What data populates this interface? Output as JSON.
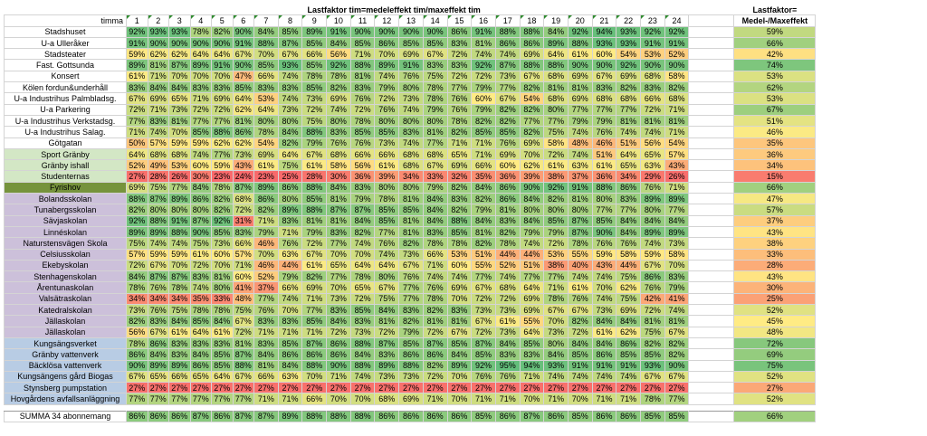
{
  "header": {
    "title": "Lastfaktor tim=medeleffekt tim/maxeffekt tim",
    "lf_title": "Lastfaktor=",
    "lf_subtitle": "Medel-/Maxeffekt",
    "row_label": "timma",
    "hours": [
      "1",
      "2",
      "3",
      "4",
      "5",
      "6",
      "7",
      "8",
      "9",
      "10",
      "11",
      "12",
      "13",
      "14",
      "15",
      "16",
      "17",
      "18",
      "19",
      "20",
      "21",
      "22",
      "23",
      "24"
    ]
  },
  "group_colors": {
    "none": "#ffffff",
    "green_light": "#d3e7c5",
    "green_dark": "#76933c",
    "purple": "#ccc0da",
    "blue": "#b8cce4"
  },
  "rows": [
    {
      "name": "Stadshuset",
      "group": "none",
      "values": [
        92,
        93,
        93,
        78,
        82,
        90,
        84,
        85,
        89,
        91,
        90,
        90,
        90,
        90,
        86,
        91,
        88,
        88,
        84,
        92,
        94,
        93,
        92,
        92
      ],
      "lf": "59%"
    },
    {
      "name": "U-a Ulleråker",
      "group": "none",
      "values": [
        91,
        90,
        90,
        90,
        90,
        91,
        88,
        87,
        85,
        84,
        85,
        86,
        85,
        85,
        83,
        81,
        86,
        86,
        89,
        88,
        93,
        93,
        91,
        91
      ],
      "lf": "66%"
    },
    {
      "name": "Stadsteater",
      "group": "none",
      "values": [
        59,
        62,
        62,
        64,
        64,
        67,
        70,
        67,
        66,
        56,
        71,
        70,
        69,
        67,
        72,
        74,
        74,
        69,
        64,
        61,
        60,
        54,
        53,
        52
      ],
      "lf": "42%"
    },
    {
      "name": "Fast. Gottsunda",
      "group": "none",
      "values": [
        89,
        81,
        87,
        89,
        91,
        90,
        85,
        93,
        85,
        92,
        88,
        89,
        91,
        83,
        83,
        92,
        87,
        88,
        88,
        90,
        90,
        92,
        90,
        90
      ],
      "lf": "74%"
    },
    {
      "name": "Konsert",
      "group": "none",
      "values": [
        61,
        71,
        70,
        70,
        70,
        47,
        66,
        74,
        78,
        78,
        81,
        74,
        76,
        75,
        72,
        72,
        73,
        67,
        68,
        69,
        67,
        69,
        68,
        58
      ],
      "lf": "53%"
    },
    {
      "name": "Kölen fordun&underhåll",
      "group": "none",
      "values": [
        83,
        84,
        84,
        83,
        83,
        85,
        83,
        83,
        85,
        82,
        83,
        79,
        80,
        78,
        77,
        79,
        77,
        82,
        81,
        81,
        83,
        82,
        83,
        82
      ],
      "lf": "62%"
    },
    {
      "name": "U-a Industrihus Palmbladsg.",
      "group": "none",
      "values": [
        67,
        69,
        65,
        71,
        69,
        64,
        53,
        74,
        73,
        69,
        76,
        72,
        73,
        78,
        76,
        60,
        67,
        54,
        68,
        69,
        68,
        68,
        66,
        68
      ],
      "lf": "53%"
    },
    {
      "name": "U-a Parkering",
      "group": "none",
      "values": [
        72,
        71,
        73,
        72,
        72,
        62,
        64,
        73,
        72,
        74,
        72,
        76,
        74,
        79,
        76,
        79,
        82,
        82,
        80,
        77,
        77,
        77,
        72,
        71
      ],
      "lf": "67%"
    },
    {
      "name": "U-a Industrihus Verkstadsg.",
      "group": "none",
      "values": [
        77,
        83,
        81,
        77,
        77,
        81,
        80,
        80,
        75,
        80,
        78,
        80,
        80,
        80,
        78,
        82,
        82,
        77,
        77,
        79,
        79,
        81,
        81,
        81
      ],
      "lf": "51%"
    },
    {
      "name": "U-a Industrihus Salag.",
      "group": "none",
      "values": [
        71,
        74,
        70,
        85,
        88,
        86,
        78,
        84,
        88,
        83,
        85,
        85,
        83,
        81,
        82,
        85,
        85,
        82,
        75,
        74,
        76,
        74,
        74,
        71
      ],
      "lf": "46%"
    },
    {
      "name": "Götgatan",
      "group": "none",
      "values": [
        50,
        57,
        59,
        59,
        62,
        62,
        54,
        82,
        79,
        76,
        76,
        73,
        74,
        77,
        71,
        71,
        76,
        69,
        58,
        48,
        46,
        51,
        56,
        54
      ],
      "lf": "35%"
    },
    {
      "name": "Sport Gränby",
      "group": "green_light",
      "values": [
        64,
        68,
        68,
        74,
        77,
        73,
        69,
        64,
        67,
        68,
        66,
        66,
        68,
        68,
        65,
        71,
        69,
        70,
        72,
        74,
        51,
        64,
        65,
        57
      ],
      "lf": "36%"
    },
    {
      "name": "Gränby ishall",
      "group": "green_light",
      "values": [
        52,
        49,
        53,
        60,
        59,
        43,
        61,
        75,
        61,
        58,
        56,
        61,
        68,
        67,
        69,
        66,
        60,
        62,
        61,
        63,
        61,
        65,
        63,
        43
      ],
      "lf": "34%"
    },
    {
      "name": "Studenternas",
      "group": "green_light",
      "values": [
        27,
        28,
        26,
        30,
        23,
        24,
        23,
        25,
        28,
        30,
        36,
        39,
        34,
        33,
        32,
        35,
        36,
        39,
        38,
        37,
        36,
        34,
        29,
        26
      ],
      "lf": "15%"
    },
    {
      "name": "Fyrishov",
      "group": "green_dark",
      "values": [
        69,
        75,
        77,
        84,
        78,
        87,
        89,
        86,
        88,
        84,
        83,
        80,
        80,
        79,
        82,
        84,
        86,
        90,
        92,
        91,
        88,
        86,
        76,
        71
      ],
      "lf": "66%"
    },
    {
      "name": "Bolandsskolan",
      "group": "purple",
      "values": [
        88,
        87,
        89,
        86,
        82,
        68,
        86,
        80,
        85,
        81,
        79,
        78,
        81,
        84,
        83,
        82,
        86,
        84,
        82,
        81,
        80,
        83,
        89,
        89
      ],
      "lf": "47%"
    },
    {
      "name": "Tunabergsskolan",
      "group": "purple",
      "values": [
        82,
        80,
        80,
        80,
        82,
        72,
        82,
        89,
        88,
        87,
        87,
        85,
        85,
        84,
        82,
        79,
        81,
        80,
        80,
        80,
        77,
        77,
        80,
        77
      ],
      "lf": "57%"
    },
    {
      "name": "Sävjaskolan",
      "group": "purple",
      "values": [
        92,
        88,
        91,
        87,
        92,
        31,
        71,
        83,
        81,
        81,
        84,
        85,
        81,
        84,
        88,
        84,
        83,
        84,
        85,
        87,
        85,
        84,
        84,
        84
      ],
      "lf": "37%"
    },
    {
      "name": "Linnéskolan",
      "group": "purple",
      "values": [
        89,
        89,
        88,
        90,
        85,
        83,
        79,
        71,
        79,
        83,
        82,
        77,
        81,
        83,
        85,
        81,
        82,
        79,
        79,
        87,
        90,
        84,
        89,
        89
      ],
      "lf": "43%"
    },
    {
      "name": "Naturstensvägen Skola",
      "group": "purple",
      "values": [
        75,
        74,
        74,
        75,
        73,
        66,
        46,
        76,
        72,
        77,
        74,
        76,
        82,
        78,
        78,
        82,
        78,
        74,
        72,
        78,
        76,
        76,
        74,
        73
      ],
      "lf": "38%"
    },
    {
      "name": "Celsiusskolan",
      "group": "purple",
      "values": [
        57,
        59,
        59,
        61,
        60,
        57,
        70,
        63,
        67,
        70,
        70,
        74,
        73,
        66,
        53,
        51,
        44,
        44,
        53,
        55,
        59,
        58,
        59,
        58
      ],
      "lf": "33%"
    },
    {
      "name": "Ekebyskolan",
      "group": "purple",
      "values": [
        72,
        67,
        70,
        72,
        70,
        71,
        46,
        44,
        61,
        65,
        64,
        64,
        67,
        71,
        60,
        55,
        52,
        51,
        38,
        40,
        43,
        44,
        67,
        70
      ],
      "lf": "28%"
    },
    {
      "name": "Stenhagenskolan",
      "group": "purple",
      "values": [
        84,
        87,
        87,
        83,
        81,
        60,
        52,
        79,
        82,
        77,
        78,
        80,
        76,
        74,
        74,
        77,
        74,
        77,
        77,
        74,
        74,
        75,
        86,
        83
      ],
      "lf": "43%"
    },
    {
      "name": "Årentunaskolan",
      "group": "purple",
      "values": [
        78,
        76,
        78,
        74,
        80,
        41,
        37,
        66,
        69,
        70,
        65,
        67,
        77,
        76,
        69,
        67,
        68,
        64,
        71,
        61,
        70,
        62,
        76,
        79
      ],
      "lf": "30%"
    },
    {
      "name": "Valsätraskolan",
      "group": "purple",
      "values": [
        34,
        34,
        34,
        35,
        33,
        48,
        77,
        74,
        71,
        73,
        72,
        75,
        77,
        78,
        70,
        72,
        72,
        69,
        78,
        76,
        74,
        75,
        42,
        41
      ],
      "lf": "25%"
    },
    {
      "name": "Katedralskolan",
      "group": "purple",
      "values": [
        73,
        76,
        75,
        78,
        78,
        75,
        76,
        70,
        77,
        83,
        85,
        84,
        83,
        82,
        83,
        73,
        73,
        69,
        67,
        67,
        73,
        69,
        72,
        74
      ],
      "lf": "52%"
    },
    {
      "name": "Jällaskolan",
      "group": "purple",
      "values": [
        82,
        83,
        84,
        85,
        84,
        67,
        83,
        83,
        85,
        84,
        83,
        81,
        82,
        81,
        81,
        67,
        61,
        55,
        70,
        82,
        84,
        84,
        81,
        81
      ],
      "lf": "45%"
    },
    {
      "name": "Jällaskolan",
      "group": "purple",
      "values": [
        56,
        67,
        61,
        64,
        61,
        72,
        71,
        71,
        71,
        72,
        73,
        72,
        79,
        72,
        67,
        72,
        73,
        64,
        73,
        72,
        61,
        62,
        75,
        67
      ],
      "lf": "48%"
    },
    {
      "name": "Kungsängsverket",
      "group": "blue",
      "values": [
        78,
        86,
        83,
        83,
        83,
        81,
        83,
        85,
        87,
        86,
        88,
        87,
        85,
        87,
        85,
        87,
        84,
        85,
        80,
        84,
        84,
        86,
        82,
        82
      ],
      "lf": "72%"
    },
    {
      "name": "Gränby vattenverk",
      "group": "blue",
      "values": [
        86,
        84,
        83,
        84,
        85,
        87,
        84,
        86,
        86,
        86,
        84,
        83,
        86,
        86,
        84,
        85,
        83,
        83,
        84,
        85,
        86,
        85,
        85,
        82
      ],
      "lf": "69%"
    },
    {
      "name": "Bäcklösa vattenverk",
      "group": "blue",
      "values": [
        90,
        89,
        89,
        86,
        85,
        88,
        81,
        84,
        88,
        90,
        88,
        89,
        88,
        82,
        89,
        92,
        95,
        94,
        93,
        91,
        91,
        91,
        93,
        90
      ],
      "lf": "75%"
    },
    {
      "name": "Kungsängens gård Biogas",
      "group": "blue",
      "values": [
        67,
        65,
        66,
        65,
        64,
        67,
        66,
        63,
        70,
        71,
        74,
        73,
        73,
        72,
        70,
        76,
        76,
        71,
        74,
        74,
        74,
        74,
        67,
        67
      ],
      "lf": "52%"
    },
    {
      "name": "Stynsberg pumpstation",
      "group": "blue",
      "values": [
        27,
        27,
        27,
        27,
        27,
        27,
        27,
        27,
        27,
        27,
        27,
        27,
        27,
        27,
        27,
        27,
        27,
        27,
        27,
        27,
        27,
        27,
        27,
        27
      ],
      "lf": "27%"
    },
    {
      "name": "Hovgårdens avfallsanläggning",
      "group": "blue",
      "values": [
        77,
        77,
        77,
        77,
        77,
        77,
        71,
        71,
        66,
        70,
        70,
        68,
        69,
        71,
        70,
        71,
        71,
        70,
        71,
        70,
        71,
        71,
        78,
        77
      ],
      "lf": "52%"
    }
  ],
  "summary": {
    "name": "SUMMA 34 abonnemang",
    "values": [
      86,
      86,
      86,
      87,
      86,
      87,
      87,
      89,
      88,
      88,
      88,
      86,
      86,
      86,
      86,
      85,
      86,
      87,
      86,
      85,
      86,
      86,
      85,
      85
    ],
    "lf": "66%"
  }
}
